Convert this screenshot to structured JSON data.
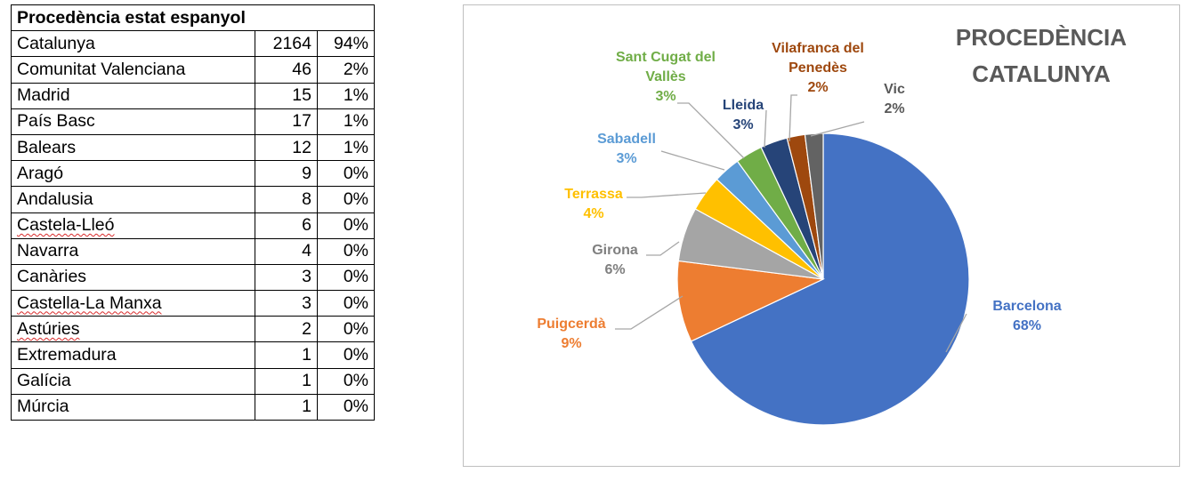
{
  "table": {
    "header": "Procedència estat espanyol",
    "rows": [
      {
        "name": "Catalunya",
        "count": "2164",
        "pct": "94%"
      },
      {
        "name": "Comunitat Valenciana",
        "count": "46",
        "pct": "2%"
      },
      {
        "name": "Madrid",
        "count": "15",
        "pct": "1%"
      },
      {
        "name": "País Basc",
        "count": "17",
        "pct": "1%"
      },
      {
        "name": "Balears",
        "count": "12",
        "pct": "1%"
      },
      {
        "name": "Aragó",
        "count": "9",
        "pct": "0%"
      },
      {
        "name": "Andalusia",
        "count": "8",
        "pct": "0%"
      },
      {
        "name": "Castela-Lleó",
        "count": "6",
        "pct": "0%"
      },
      {
        "name": "Navarra",
        "count": "4",
        "pct": "0%"
      },
      {
        "name": "Canàries",
        "count": "3",
        "pct": "0%"
      },
      {
        "name": "Castella-La Manxa",
        "count": "3",
        "pct": "0%"
      },
      {
        "name": "Astúries",
        "count": "2",
        "pct": "0%"
      },
      {
        "name": "Extremadura",
        "count": "1",
        "pct": "0%"
      },
      {
        "name": "Galícia",
        "count": "1",
        "pct": "0%"
      },
      {
        "name": "Múrcia",
        "count": "1",
        "pct": "0%"
      }
    ]
  },
  "chart_data": {
    "type": "pie",
    "title_lines": [
      "PROCEDÈNCIA",
      "CATALUNYA"
    ],
    "slices": [
      {
        "label": "Barcelona",
        "value": 68,
        "value_label": "68%",
        "color": "#4472c4"
      },
      {
        "label": "Puigcerdà",
        "value": 9,
        "value_label": "9%",
        "color": "#ed7d31"
      },
      {
        "label": "Girona",
        "value": 6,
        "value_label": "6%",
        "color": "#a5a5a5"
      },
      {
        "label": "Terrassa",
        "value": 4,
        "value_label": "4%",
        "color": "#ffc000"
      },
      {
        "label": "Sabadell",
        "value": 3,
        "value_label": "3%",
        "color": "#5b9bd5"
      },
      {
        "label": "Sant Cugat del Vallès",
        "value": 3,
        "value_label": "3%",
        "color": "#70ad47"
      },
      {
        "label": "Lleida",
        "value": 3,
        "value_label": "3%",
        "color": "#264478"
      },
      {
        "label": "Vilafranca del Penedès",
        "value": 2,
        "value_label": "2%",
        "color": "#9e480e"
      },
      {
        "label": "Vic",
        "value": 2,
        "value_label": "2%",
        "color": "#636363"
      }
    ],
    "label_lines": {
      "Barcelona": [
        "Barcelona"
      ],
      "Puigcerdà": [
        "Puigcerdà"
      ],
      "Girona": [
        "Girona"
      ],
      "Terrassa": [
        "Terrassa"
      ],
      "Sabadell": [
        "Sabadell"
      ],
      "Sant Cugat del Vallès": [
        "Sant Cugat del",
        "Vallès"
      ],
      "Lleida": [
        "Lleida"
      ],
      "Vilafranca del Penedès": [
        "Vilafranca del",
        "Penedès"
      ],
      "Vic": [
        "Vic"
      ]
    },
    "label_text_colors": {
      "Girona": "#7f7f7f",
      "Vic": "#595959"
    }
  }
}
